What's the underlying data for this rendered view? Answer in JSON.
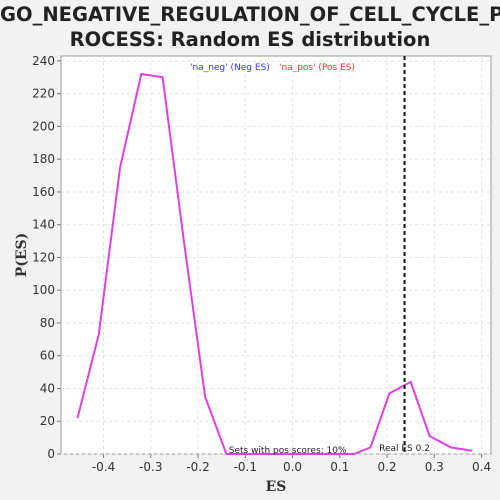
{
  "chart_data": {
    "type": "line",
    "title_line1": "GO_NEGATIVE_REGULATION_OF_CELL_CYCLE_P",
    "title_line2": "ROCESS: Random ES distribution",
    "xlabel": "ES",
    "ylabel": "P(ES)",
    "xlim": [
      -0.49,
      0.42
    ],
    "ylim": [
      0,
      243
    ],
    "xticks": [
      "-0.4",
      "-0.3",
      "-0.2",
      "-0.1",
      "0.0",
      "0.1",
      "0.2",
      "0.3",
      "0.4"
    ],
    "xtick_values": [
      -0.4,
      -0.3,
      -0.2,
      -0.1,
      0.0,
      0.1,
      0.2,
      0.3,
      0.4
    ],
    "yticks": [
      "0",
      "20",
      "40",
      "60",
      "80",
      "100",
      "120",
      "140",
      "160",
      "180",
      "200",
      "220",
      "240"
    ],
    "ytick_values": [
      0,
      20,
      40,
      60,
      80,
      100,
      120,
      140,
      160,
      180,
      200,
      220,
      240
    ],
    "grid": true,
    "legend_position": "top-center",
    "legend": [
      {
        "text": "'na_neg' (Neg ES)",
        "color": "#3333ff"
      },
      {
        "text": "'na_pos' (Pos ES)",
        "color": "#ff3333"
      }
    ],
    "series": [
      {
        "color": "#e040e0",
        "x": [
          -0.455,
          -0.41,
          -0.365,
          -0.32,
          -0.275,
          -0.23,
          -0.185,
          -0.14,
          -0.095,
          -0.05,
          -0.005,
          0.04,
          0.085,
          0.13,
          0.165,
          0.205,
          0.25,
          0.29,
          0.335,
          0.38
        ],
        "y": [
          22,
          73,
          175,
          232,
          230,
          130,
          35,
          0,
          0,
          0,
          0,
          0,
          0,
          0,
          4,
          37,
          44,
          11,
          4,
          2
        ]
      }
    ],
    "real_es": {
      "x": 0.237,
      "label": "Real ES 0.2"
    },
    "annotation": "Sets with pos scores: 10%"
  }
}
